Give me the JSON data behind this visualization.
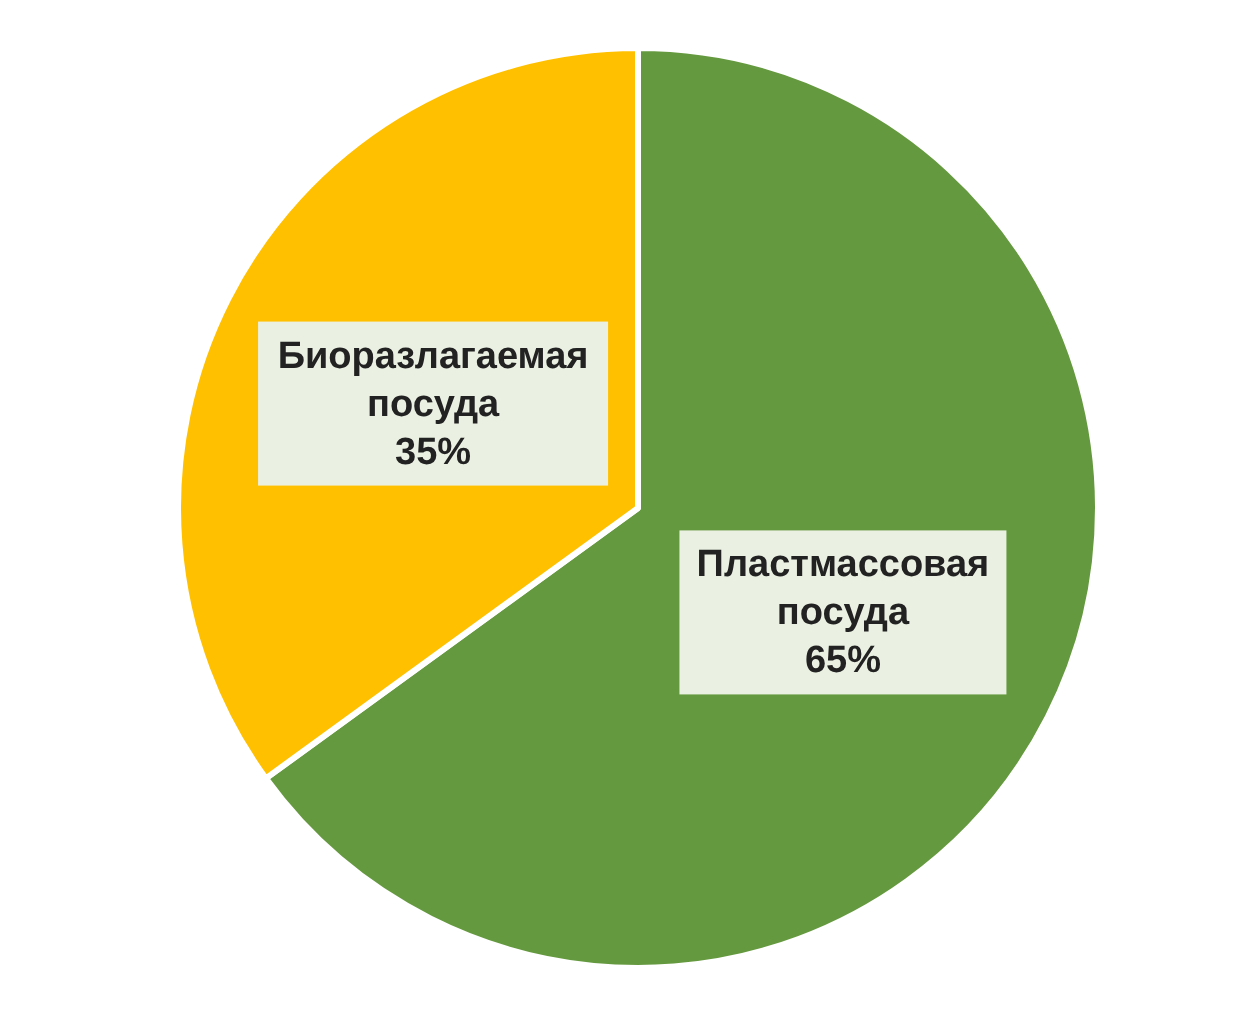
{
  "chart_data": {
    "type": "pie",
    "categories": [
      "Пластмассовая посуда",
      "Биоразлагаемая посуда"
    ],
    "values": [
      65,
      35
    ],
    "colors": [
      "#65993f",
      "#ffc000"
    ],
    "value_labels": [
      "65%",
      "35%"
    ]
  }
}
